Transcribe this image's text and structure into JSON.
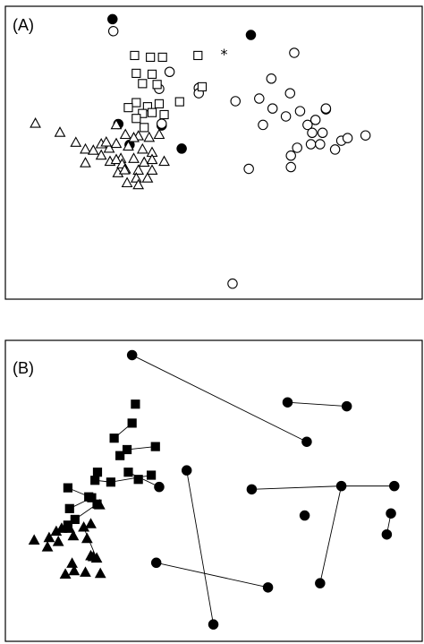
{
  "chart_data": [
    {
      "type": "scatter",
      "panel_label": "(A)",
      "xlim": [
        0,
        100
      ],
      "ylim": [
        0,
        100
      ],
      "grid": false,
      "annotations": [
        {
          "text": "*",
          "x": 51.6,
          "y": 81.9
        }
      ],
      "series": [
        {
          "marker": "circle-filled",
          "points": [
            [
              25.7,
              95.6
            ],
            [
              58.9,
              90.2
            ],
            [
              27.1,
              59.8
            ],
            [
              37.5,
              59.3
            ],
            [
              29.8,
              52.7
            ],
            [
              42.3,
              51.4
            ]
          ]
        },
        {
          "marker": "circle-open",
          "points": [
            [
              25.9,
              91.5
            ],
            [
              69.3,
              84.1
            ],
            [
              39.4,
              77.6
            ],
            [
              36.9,
              71.8
            ],
            [
              46.4,
              72.1
            ],
            [
              46.4,
              70.3
            ],
            [
              55.2,
              67.6
            ],
            [
              63.8,
              75.3
            ],
            [
              60.9,
              68.5
            ],
            [
              68.3,
              70.3
            ],
            [
              64.1,
              65.1
            ],
            [
              67.3,
              62.4
            ],
            [
              70.7,
              64.2
            ],
            [
              76.9,
              64.8
            ],
            [
              76.9,
              65.1
            ],
            [
              74.4,
              61.2
            ],
            [
              61.8,
              59.5
            ],
            [
              72.5,
              59.5
            ],
            [
              73.6,
              56.8
            ],
            [
              76.1,
              56.8
            ],
            [
              80.6,
              54.1
            ],
            [
              82.1,
              55.0
            ],
            [
              70.0,
              51.7
            ],
            [
              73.3,
              52.9
            ],
            [
              75.5,
              52.9
            ],
            [
              79.1,
              51.1
            ],
            [
              68.5,
              49.0
            ],
            [
              86.4,
              55.9
            ],
            [
              58.4,
              44.5
            ],
            [
              68.5,
              45.1
            ],
            [
              54.5,
              5.3
            ],
            [
              37.5,
              59.9
            ]
          ]
        },
        {
          "marker": "square-open",
          "points": [
            [
              31.0,
              83.2
            ],
            [
              34.8,
              82.6
            ],
            [
              37.7,
              82.6
            ],
            [
              31.4,
              77.1
            ],
            [
              35.2,
              76.8
            ],
            [
              32.9,
              73.6
            ],
            [
              36.4,
              73.3
            ],
            [
              31.4,
              67.1
            ],
            [
              34.1,
              65.7
            ],
            [
              36.9,
              66.7
            ],
            [
              41.8,
              67.4
            ],
            [
              29.5,
              65.4
            ],
            [
              32.9,
              63.4
            ],
            [
              35.2,
              63.7
            ],
            [
              38.1,
              63.0
            ],
            [
              31.4,
              61.7
            ],
            [
              33.3,
              58.6
            ],
            [
              46.2,
              83.2
            ],
            [
              47.2,
              72.5
            ]
          ]
        },
        {
          "marker": "triangle-open",
          "points": [
            [
              7.2,
              59.9
            ],
            [
              13.1,
              56.8
            ],
            [
              16.9,
              53.4
            ],
            [
              19.2,
              51.1
            ],
            [
              23.0,
              52.9
            ],
            [
              26.6,
              53.0
            ],
            [
              28.8,
              56.1
            ],
            [
              31.9,
              55.6
            ],
            [
              34.5,
              55.1
            ],
            [
              36.9,
              56.1
            ],
            [
              26.6,
              59.4
            ],
            [
              30.8,
              55.0
            ],
            [
              32.9,
              51.1
            ],
            [
              35.2,
              50.0
            ],
            [
              29.5,
              52.1
            ],
            [
              24.9,
              51.4
            ],
            [
              23.0,
              49.0
            ],
            [
              25.1,
              46.9
            ],
            [
              27.7,
              47.9
            ],
            [
              30.8,
              47.9
            ],
            [
              33.3,
              46.6
            ],
            [
              35.2,
              47.5
            ],
            [
              38.1,
              46.9
            ],
            [
              28.8,
              44.3
            ],
            [
              31.9,
              43.9
            ],
            [
              35.2,
              43.9
            ],
            [
              31.4,
              41.2
            ],
            [
              34.1,
              41.2
            ],
            [
              29.2,
              39.6
            ],
            [
              31.9,
              38.9
            ],
            [
              21.1,
              50.7
            ],
            [
              19.2,
              46.4
            ],
            [
              27.0,
              43.0
            ],
            [
              26.6,
              47.5
            ],
            [
              24.2,
              53.5
            ],
            [
              28.0,
              46.0
            ],
            [
              28.6,
              44.0
            ]
          ]
        }
      ]
    },
    {
      "type": "scatter",
      "panel_label": "(B)",
      "xlim": [
        0,
        100
      ],
      "ylim": [
        0,
        100
      ],
      "grid": false,
      "series": [
        {
          "marker": "circle-filled",
          "points": [
            [
              30.4,
              95.1
            ],
            [
              72.3,
              66.3
            ],
            [
              67.7,
              79.4
            ],
            [
              81.9,
              78.1
            ],
            [
              43.5,
              56.8
            ],
            [
              59.1,
              50.5
            ],
            [
              80.6,
              51.6
            ],
            [
              93.3,
              51.6
            ],
            [
              71.8,
              41.8
            ],
            [
              92.5,
              42.5
            ],
            [
              91.5,
              35.5
            ],
            [
              36.2,
              26.1
            ],
            [
              63.0,
              17.9
            ],
            [
              75.5,
              19.3
            ],
            [
              49.9,
              5.6
            ],
            [
              36.9,
              51.3
            ]
          ]
        },
        {
          "marker": "square-filled",
          "points": [
            [
              31.2,
              78.8
            ],
            [
              30.4,
              72.5
            ],
            [
              26.1,
              67.5
            ],
            [
              36.0,
              64.7
            ],
            [
              29.2,
              63.7
            ],
            [
              27.5,
              61.7
            ],
            [
              22.1,
              56.2
            ],
            [
              21.5,
              53.5
            ],
            [
              25.3,
              52.9
            ],
            [
              35.0,
              55.2
            ],
            [
              29.5,
              56.2
            ],
            [
              31.9,
              53.8
            ],
            [
              15.0,
              51.0
            ],
            [
              20.7,
              47.7
            ],
            [
              15.4,
              44.1
            ],
            [
              15.0,
              38.6
            ],
            [
              16.7,
              40.5
            ],
            [
              22.0,
              45.6
            ],
            [
              20.0,
              48.0
            ]
          ]
        },
        {
          "marker": "triangle-filled",
          "points": [
            [
              15.4,
              37.4
            ],
            [
              22.6,
              45.2
            ],
            [
              6.9,
              33.5
            ],
            [
              10.5,
              34.3
            ],
            [
              12.2,
              36.4
            ],
            [
              13.5,
              37.4
            ],
            [
              16.3,
              34.9
            ],
            [
              18.8,
              37.8
            ],
            [
              12.7,
              33.0
            ],
            [
              10.1,
              31.2
            ],
            [
              19.6,
              34.0
            ],
            [
              21.9,
              27.5
            ],
            [
              16.0,
              25.8
            ],
            [
              20.5,
              28.3
            ],
            [
              22.8,
              22.4
            ],
            [
              14.4,
              22.2
            ],
            [
              16.5,
              23.3
            ],
            [
              19.2,
              22.8
            ],
            [
              21.1,
              28.0
            ],
            [
              20.5,
              38.9
            ]
          ]
        }
      ],
      "connections": [
        [
          [
            30.4,
            95.1
          ],
          [
            72.3,
            66.3
          ]
        ],
        [
          [
            67.7,
            79.4
          ],
          [
            81.9,
            78.1
          ]
        ],
        [
          [
            59.1,
            50.5
          ],
          [
            80.6,
            51.6
          ]
        ],
        [
          [
            80.6,
            51.6
          ],
          [
            93.3,
            51.6
          ]
        ],
        [
          [
            80.6,
            51.6
          ],
          [
            75.5,
            19.3
          ]
        ],
        [
          [
            92.5,
            42.5
          ],
          [
            91.5,
            35.5
          ]
        ],
        [
          [
            43.5,
            56.8
          ],
          [
            49.9,
            5.6
          ]
        ],
        [
          [
            36.2,
            26.1
          ],
          [
            63.0,
            17.9
          ]
        ],
        [
          [
            29.2,
            63.7
          ],
          [
            27.5,
            61.7
          ]
        ],
        [
          [
            30.4,
            72.5
          ],
          [
            26.1,
            67.5
          ]
        ],
        [
          [
            36.0,
            64.7
          ],
          [
            29.2,
            63.7
          ]
        ],
        [
          [
            25.3,
            52.9
          ],
          [
            35.0,
            55.2
          ]
        ],
        [
          [
            29.5,
            56.2
          ],
          [
            36.9,
            51.3
          ]
        ],
        [
          [
            21.5,
            53.5
          ],
          [
            25.3,
            52.9
          ]
        ],
        [
          [
            15.0,
            51.0
          ],
          [
            20.7,
            47.7
          ]
        ],
        [
          [
            15.4,
            44.1
          ],
          [
            20.7,
            47.7
          ]
        ],
        [
          [
            12.2,
            36.4
          ],
          [
            15.4,
            37.4
          ]
        ],
        [
          [
            18.8,
            37.8
          ],
          [
            21.9,
            27.5
          ]
        ],
        [
          [
            16.7,
            40.5
          ],
          [
            22.0,
            45.6
          ]
        ]
      ]
    }
  ]
}
